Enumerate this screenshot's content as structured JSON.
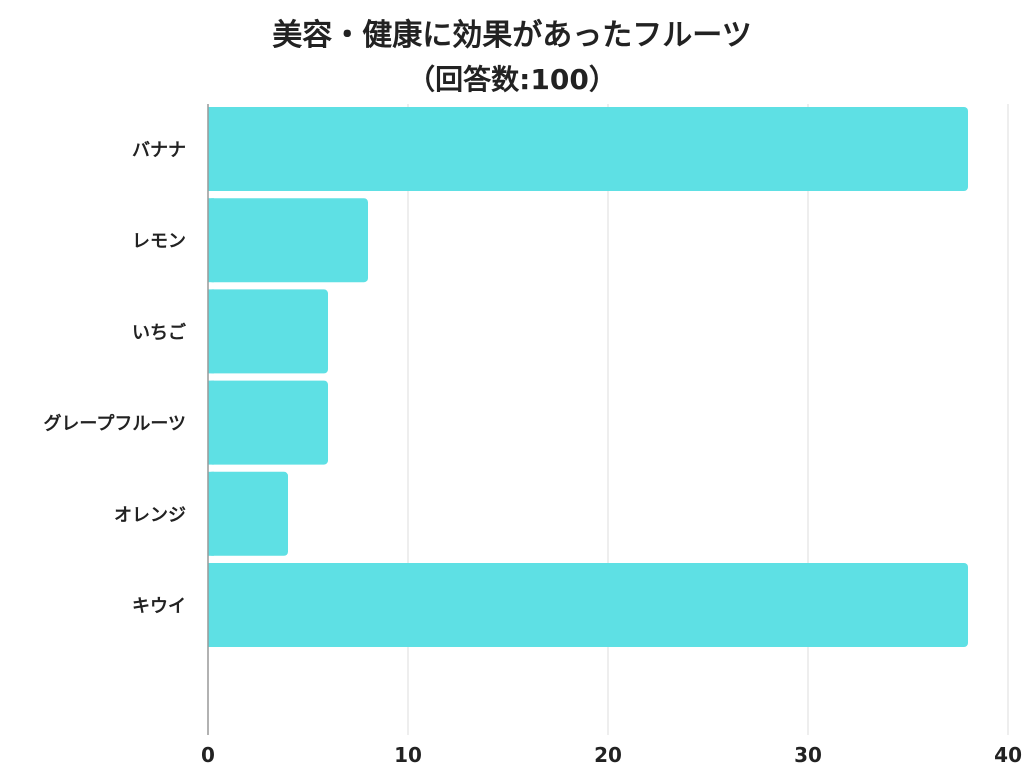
{
  "chart_data": {
    "type": "bar",
    "orientation": "horizontal",
    "title": "美容・健康に効果があったフルーツ",
    "subtitle": "（回答数:100）",
    "categories": [
      "バナナ",
      "レモン",
      "いちご",
      "グレープフルーツ",
      "オレンジ",
      "キウイ"
    ],
    "values": [
      38,
      8,
      6,
      6,
      4,
      38
    ],
    "xlim": [
      0,
      40
    ],
    "xticks": [
      0,
      10,
      20,
      30,
      40
    ],
    "xlabel": "",
    "ylabel": "",
    "grid": true,
    "bar_color": "#5ee0e4",
    "grid_color": "#dddddd"
  }
}
